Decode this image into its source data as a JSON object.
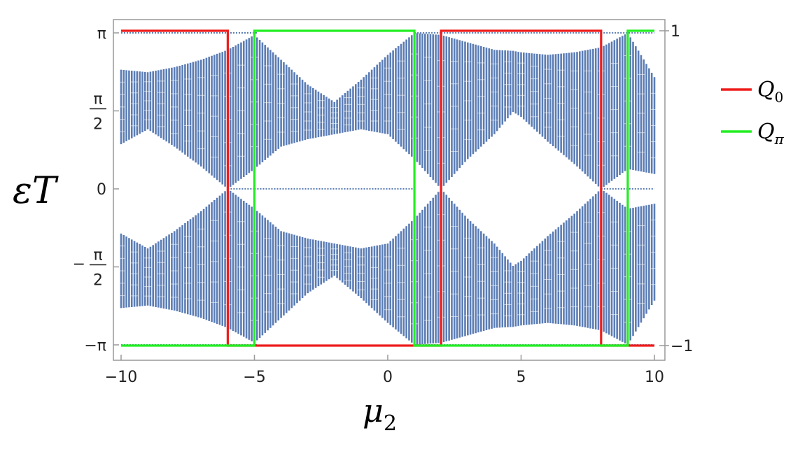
{
  "chart_data": {
    "type": "line",
    "xlabel": "μ",
    "xlabel_sub": "2",
    "ylabel": "εT",
    "xlim": [
      -10,
      10
    ],
    "ylim": [
      -3.3,
      3.3
    ],
    "right_ylim": [
      -1.05,
      1.05
    ],
    "x_ticks": [
      {
        "value": -10,
        "label": "−10"
      },
      {
        "value": -5,
        "label": "−5"
      },
      {
        "value": 0,
        "label": "0"
      },
      {
        "value": 5,
        "label": "5"
      },
      {
        "value": 10,
        "label": "10"
      }
    ],
    "y_ticks": [
      {
        "value": 3.14159,
        "label": "π",
        "type": "simple"
      },
      {
        "value": 1.5708,
        "num": "π",
        "den": "2",
        "sign": "",
        "type": "frac"
      },
      {
        "value": 0,
        "label": "0",
        "type": "simple"
      },
      {
        "value": -1.5708,
        "num": "π",
        "den": "2",
        "sign": "−",
        "type": "frac"
      },
      {
        "value": -3.14159,
        "label": "−π",
        "type": "simple"
      }
    ],
    "right_ticks": [
      {
        "value": 1,
        "label": "1"
      },
      {
        "value": -1,
        "label": "−1"
      }
    ],
    "spectrum": {
      "color": "#5b7db5",
      "description": "Floquet quasienergy bands versus mu2",
      "upper_band_edges": [
        {
          "x": -10,
          "low": 0.9,
          "high": 2.4
        },
        {
          "x": -9,
          "low": 1.2,
          "high": 2.35
        },
        {
          "x": -8,
          "low": 0.85,
          "high": 2.45
        },
        {
          "x": -7,
          "low": 0.45,
          "high": 2.6
        },
        {
          "x": -6,
          "low": 0.0,
          "high": 2.8
        },
        {
          "x": -5,
          "low": 0.4,
          "high": 3.1
        },
        {
          "x": -4,
          "low": 0.85,
          "high": 2.6
        },
        {
          "x": -3,
          "low": 1.0,
          "high": 2.1
        },
        {
          "x": -2,
          "low": 1.1,
          "high": 1.75
        },
        {
          "x": -1,
          "low": 1.2,
          "high": 2.2
        },
        {
          "x": 0,
          "low": 1.1,
          "high": 2.7
        },
        {
          "x": 1,
          "low": 0.6,
          "high": 3.14
        },
        {
          "x": 2,
          "low": 0.0,
          "high": 3.1
        },
        {
          "x": 3,
          "low": 0.6,
          "high": 2.95
        },
        {
          "x": 4,
          "low": 1.1,
          "high": 2.8
        },
        {
          "x": 4.7,
          "low": 1.55,
          "high": 2.78
        },
        {
          "x": 5,
          "low": 1.45,
          "high": 2.75
        },
        {
          "x": 6,
          "low": 0.95,
          "high": 2.7
        },
        {
          "x": 7,
          "low": 0.5,
          "high": 2.75
        },
        {
          "x": 8,
          "low": 0.0,
          "high": 2.85
        },
        {
          "x": 9,
          "low": 0.4,
          "high": 3.14
        },
        {
          "x": 10,
          "low": 0.3,
          "high": 2.25
        }
      ],
      "zero_mode_ranges": [
        [
          -6,
          -5
        ],
        [
          -5,
          1
        ],
        [
          8,
          10
        ]
      ],
      "pi_mode_ranges": [
        [
          -10,
          -4.9
        ],
        [
          1,
          2
        ],
        [
          2,
          10
        ]
      ]
    },
    "series": [
      {
        "name": "Q0",
        "legend_main": "Q",
        "legend_sub": "0",
        "color": "#ee1c1c",
        "points": [
          [
            -10,
            1
          ],
          [
            -6,
            1
          ],
          [
            -6,
            -1
          ],
          [
            -5,
            -1
          ],
          [
            -5,
            -1
          ],
          [
            2,
            -1
          ],
          [
            2,
            1
          ],
          [
            8,
            1
          ],
          [
            8,
            -1
          ],
          [
            9,
            -1
          ],
          [
            9,
            -1
          ],
          [
            10,
            -1
          ]
        ]
      },
      {
        "name": "Qπ",
        "legend_main": "Q",
        "legend_sub": "π",
        "color": "#22ee22",
        "points": [
          [
            -10,
            -1
          ],
          [
            -5,
            -1
          ],
          [
            -5,
            1
          ],
          [
            1,
            1
          ],
          [
            1,
            -1
          ],
          [
            9,
            -1
          ],
          [
            9,
            1
          ],
          [
            10,
            1
          ]
        ]
      }
    ],
    "legend": "right"
  }
}
